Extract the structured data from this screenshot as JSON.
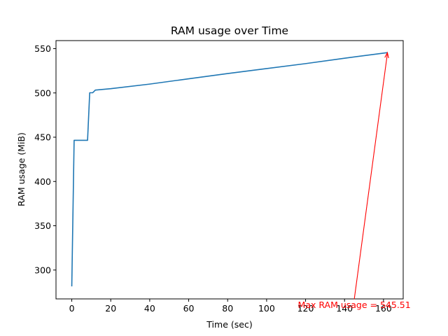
{
  "chart_data": {
    "type": "line",
    "title": "RAM usage over Time",
    "xlabel": "Time (sec)",
    "ylabel": "RAM usage (MiB)",
    "xlim": [
      -8.1,
      170.1
    ],
    "ylim": [
      267.4,
      559.1
    ],
    "xticks": [
      0,
      20,
      40,
      60,
      80,
      100,
      120,
      140,
      160
    ],
    "yticks": [
      300,
      350,
      400,
      450,
      500,
      550
    ],
    "grid": false,
    "legend": "none",
    "series": [
      {
        "color": "#1f77b4",
        "x": [
          0,
          1.2,
          8.1,
          9.2,
          10.7,
          12.1,
          20,
          40,
          60,
          80,
          100,
          120,
          140,
          162
        ],
        "y": [
          281.5,
          446.5,
          446.5,
          500.2,
          500.2,
          503.2,
          504.8,
          510.0,
          516.0,
          521.9,
          527.5,
          533.1,
          539.2,
          545.51
        ]
      }
    ],
    "annotation": {
      "text": "Max RAM usage = 545.51",
      "color": "#ff0000",
      "point": [
        162,
        545.51
      ],
      "text_anchor_data": [
        145,
        257
      ]
    }
  }
}
